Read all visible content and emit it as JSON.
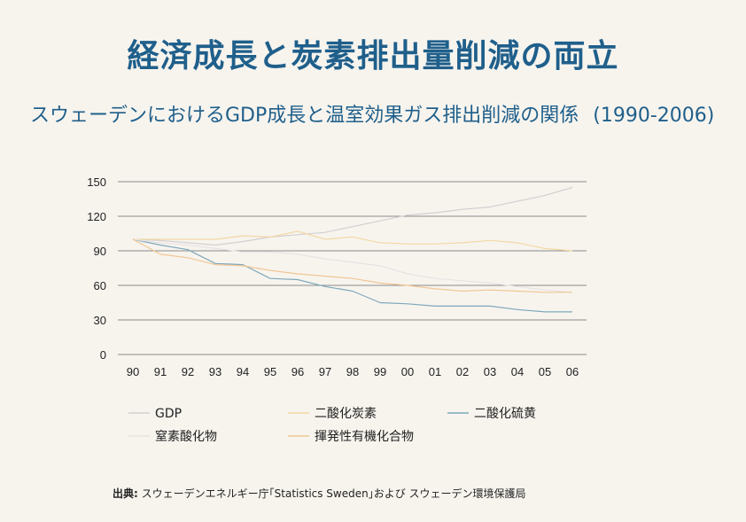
{
  "title": "経済成長と炭素排出量削減の両立",
  "subtitle": "スウェーデンにおけるGDP成長と温室効果ガス排出削減の関係",
  "subtitle_years": "(1990-2006)",
  "source_label": "出典:",
  "source_text": "スウェーデンエネルギー庁｢Statistics Sweden｣および スウェーデン環境保護局",
  "colors": {
    "background": "#f7f4ee",
    "title": "#1f5f8b",
    "grid": "#8a8a8a"
  },
  "chart_data": {
    "type": "line",
    "categories": [
      "90",
      "91",
      "92",
      "93",
      "94",
      "95",
      "96",
      "97",
      "98",
      "99",
      "00",
      "01",
      "02",
      "03",
      "04",
      "05",
      "06"
    ],
    "y_ticks": [
      0,
      30,
      60,
      90,
      120,
      150
    ],
    "ylim": [
      0,
      150
    ],
    "grid": true,
    "legend_position": "bottom",
    "series": [
      {
        "name": "GDP",
        "color": "#d2cfd0",
        "values": [
          100,
          99,
          97,
          95,
          98,
          102,
          104,
          106,
          111,
          116,
          121,
          123,
          126,
          128,
          133,
          138,
          145
        ]
      },
      {
        "name": "二酸化炭素",
        "color": "#f2d8a4",
        "values": [
          100,
          100,
          100,
          100,
          103,
          102,
          107,
          100,
          102,
          97,
          96,
          96,
          97,
          99,
          97,
          92,
          90
        ]
      },
      {
        "name": "二酸化硫黄",
        "color": "#7fa8bb",
        "values": [
          100,
          95,
          91,
          79,
          78,
          66,
          65,
          59,
          55,
          45,
          44,
          42,
          42,
          42,
          39,
          37,
          37
        ]
      },
      {
        "name": "窒素酸化物",
        "color": "#e7e3e3",
        "values": [
          100,
          97,
          95,
          92,
          89,
          89,
          87,
          83,
          80,
          77,
          70,
          66,
          64,
          62,
          59,
          56,
          54
        ]
      },
      {
        "name": "揮発性有機化合物",
        "color": "#f0c694",
        "values": [
          100,
          87,
          84,
          78,
          77,
          73,
          70,
          68,
          66,
          62,
          60,
          57,
          55,
          56,
          55,
          54,
          54
        ]
      }
    ]
  }
}
